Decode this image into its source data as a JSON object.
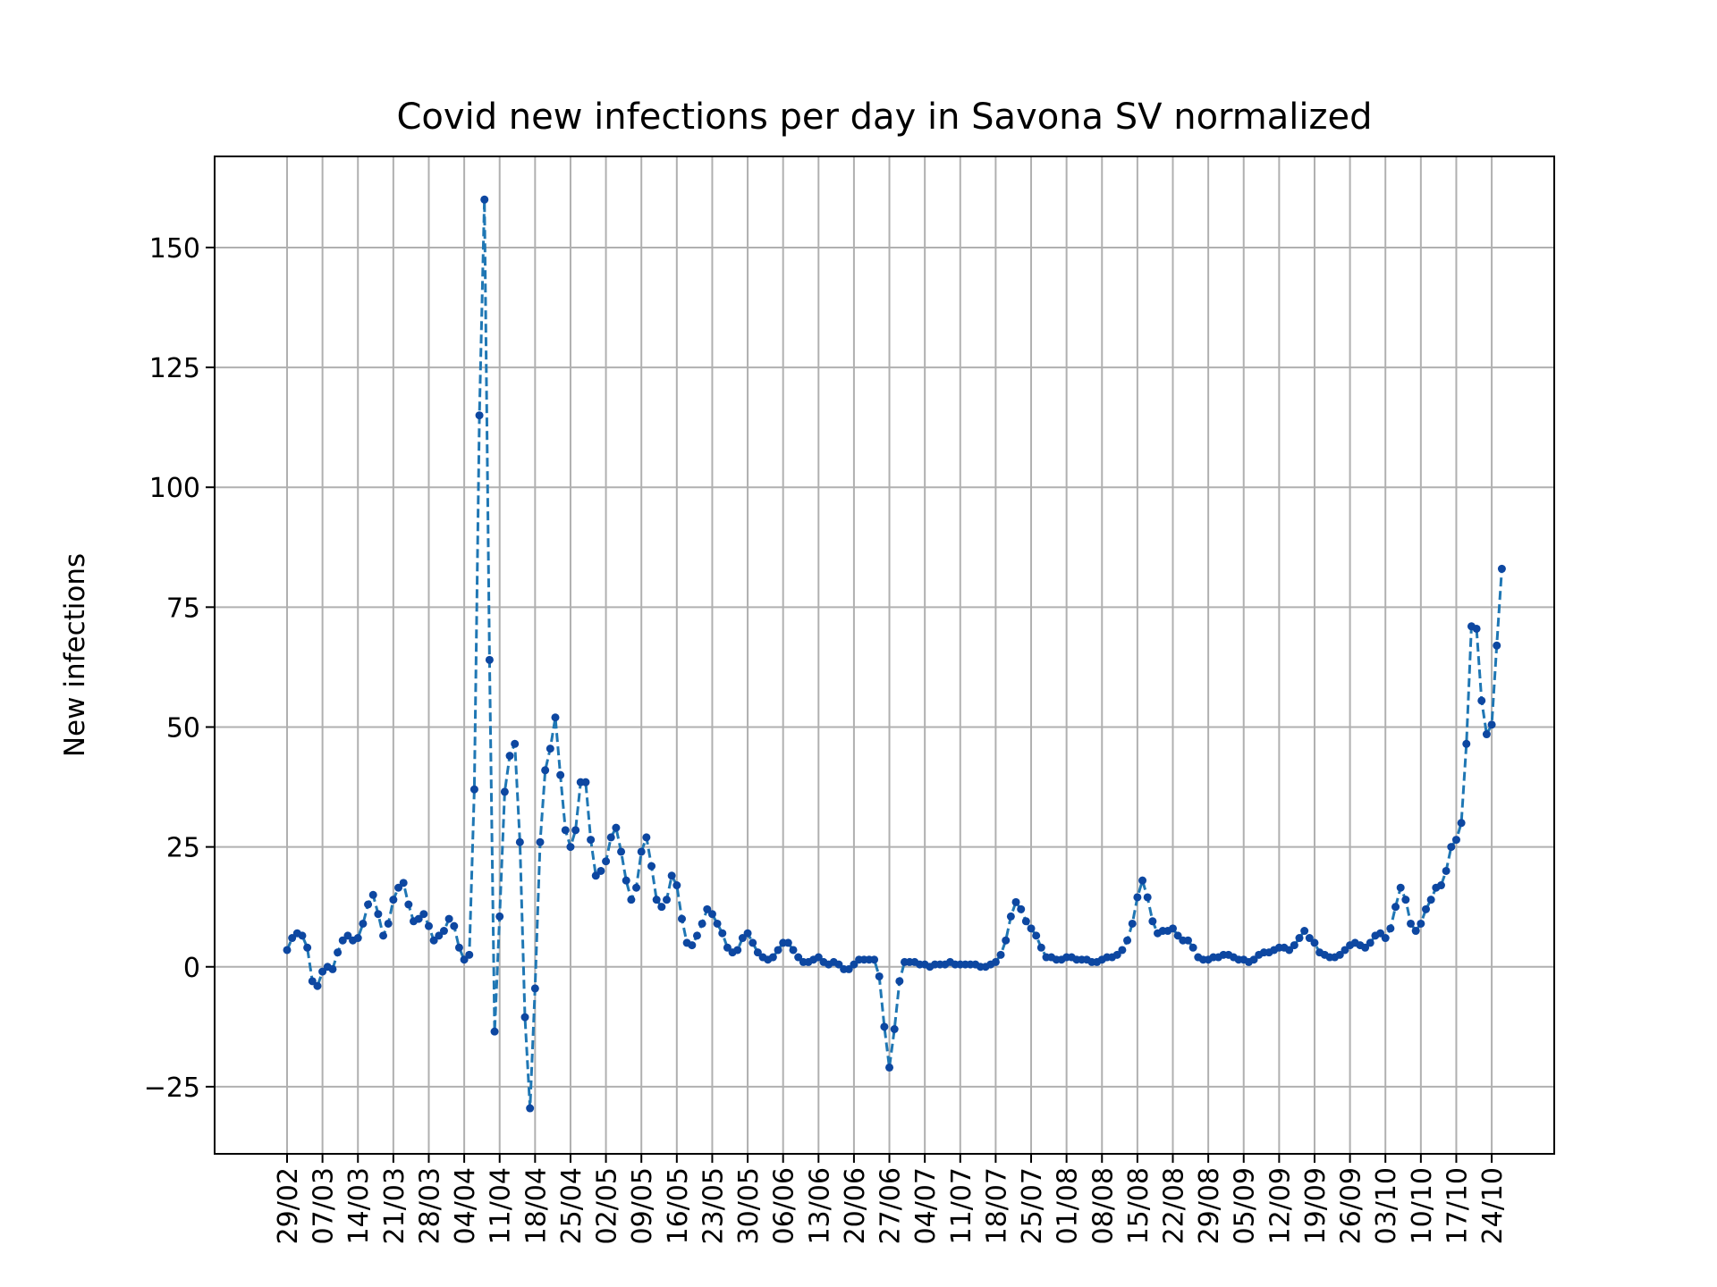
{
  "chart_data": {
    "type": "line",
    "title": "Covid new infections per day in Savona SV normalized",
    "xlabel": "",
    "ylabel": "New infections",
    "ylim": [
      -39,
      169
    ],
    "yticks": [
      -25,
      0,
      25,
      50,
      75,
      100,
      125,
      150
    ],
    "ytick_labels": [
      "−25",
      "0",
      "25",
      "50",
      "75",
      "100",
      "125",
      "150"
    ],
    "xticks": [
      {
        "day": 0,
        "label": "29/02"
      },
      {
        "day": 7,
        "label": "07/03"
      },
      {
        "day": 14,
        "label": "14/03"
      },
      {
        "day": 21,
        "label": "21/03"
      },
      {
        "day": 28,
        "label": "28/03"
      },
      {
        "day": 35,
        "label": "04/04"
      },
      {
        "day": 42,
        "label": "11/04"
      },
      {
        "day": 49,
        "label": "18/04"
      },
      {
        "day": 56,
        "label": "25/04"
      },
      {
        "day": 63,
        "label": "02/05"
      },
      {
        "day": 70,
        "label": "09/05"
      },
      {
        "day": 77,
        "label": "16/05"
      },
      {
        "day": 84,
        "label": "23/05"
      },
      {
        "day": 91,
        "label": "30/05"
      },
      {
        "day": 98,
        "label": "06/06"
      },
      {
        "day": 105,
        "label": "13/06"
      },
      {
        "day": 112,
        "label": "20/06"
      },
      {
        "day": 119,
        "label": "27/06"
      },
      {
        "day": 126,
        "label": "04/07"
      },
      {
        "day": 133,
        "label": "11/07"
      },
      {
        "day": 140,
        "label": "18/07"
      },
      {
        "day": 147,
        "label": "25/07"
      },
      {
        "day": 154,
        "label": "01/08"
      },
      {
        "day": 161,
        "label": "08/08"
      },
      {
        "day": 168,
        "label": "15/08"
      },
      {
        "day": 175,
        "label": "22/08"
      },
      {
        "day": 182,
        "label": "29/08"
      },
      {
        "day": 189,
        "label": "05/09"
      },
      {
        "day": 196,
        "label": "12/09"
      },
      {
        "day": 203,
        "label": "19/09"
      },
      {
        "day": 210,
        "label": "26/09"
      },
      {
        "day": 217,
        "label": "03/10"
      },
      {
        "day": 224,
        "label": "10/10"
      },
      {
        "day": 231,
        "label": "17/10"
      },
      {
        "day": 238,
        "label": "24/10"
      }
    ],
    "series": [
      {
        "color": "#1f77b4",
        "marker_color": "#0d47a1",
        "linestyle": "dashed",
        "marker": "dot",
        "values": [
          3.5,
          6,
          7,
          6.5,
          4,
          -3,
          -4,
          -1,
          0,
          -0.5,
          3,
          5.5,
          6.5,
          5.5,
          6,
          9,
          13,
          15,
          11,
          6.5,
          9,
          14,
          16.5,
          17.5,
          13,
          9.5,
          10,
          11,
          8.5,
          5.5,
          6.5,
          7.5,
          10,
          8.5,
          4,
          1.5,
          2.5,
          37,
          115,
          160,
          64,
          -13.5,
          10.5,
          36.5,
          44,
          46.5,
          26,
          -10.5,
          -29.5,
          -4.5,
          26,
          41,
          45.5,
          52,
          40,
          28.5,
          25,
          28.5,
          38.5,
          38.5,
          26.5,
          19,
          20,
          22,
          27,
          29,
          24,
          18,
          14,
          16.5,
          24,
          27,
          21,
          14,
          12.5,
          14,
          19,
          17,
          10,
          5,
          4.5,
          6.5,
          9,
          12,
          11,
          9,
          7,
          4,
          3,
          3.5,
          6,
          7,
          5,
          3,
          2,
          1.5,
          2,
          3.5,
          5,
          5,
          3.5,
          2,
          1,
          1,
          1.5,
          2,
          1,
          0.5,
          1,
          0.5,
          -0.5,
          -0.5,
          0.5,
          1.5,
          1.5,
          1.5,
          1.5,
          -2,
          -12.5,
          -21,
          -13,
          -3,
          1,
          1,
          1,
          0.5,
          0.5,
          0,
          0.5,
          0.5,
          0.5,
          1,
          0.5,
          0.5,
          0.5,
          0.5,
          0.5,
          0,
          0,
          0.5,
          1,
          2.5,
          5.5,
          10.5,
          13.5,
          12,
          9.5,
          8,
          6.5,
          4,
          2,
          2,
          1.5,
          1.5,
          2,
          2,
          1.5,
          1.5,
          1.5,
          1,
          1,
          1.5,
          2,
          2,
          2.5,
          3.5,
          5.5,
          9,
          14.5,
          18,
          14.5,
          9.5,
          7,
          7.5,
          7.5,
          8,
          6.5,
          5.5,
          5.5,
          4,
          2,
          1.5,
          1.5,
          2,
          2,
          2.5,
          2.5,
          2,
          1.5,
          1.5,
          1,
          1.5,
          2.5,
          3,
          3,
          3.5,
          4,
          4,
          3.5,
          4.5,
          6,
          7.5,
          6,
          5,
          3,
          2.5,
          2,
          2,
          2.5,
          3.5,
          4.5,
          5,
          4.5,
          4,
          5,
          6.5,
          7,
          6,
          8,
          12.5,
          16.5,
          14,
          9,
          7.5,
          9,
          12,
          14,
          16.5,
          17,
          20,
          25,
          26.5,
          30,
          46.5,
          71,
          70.5,
          55.5,
          48.5,
          50.5,
          67,
          83
        ]
      }
    ],
    "grid": true,
    "legend": "none"
  }
}
